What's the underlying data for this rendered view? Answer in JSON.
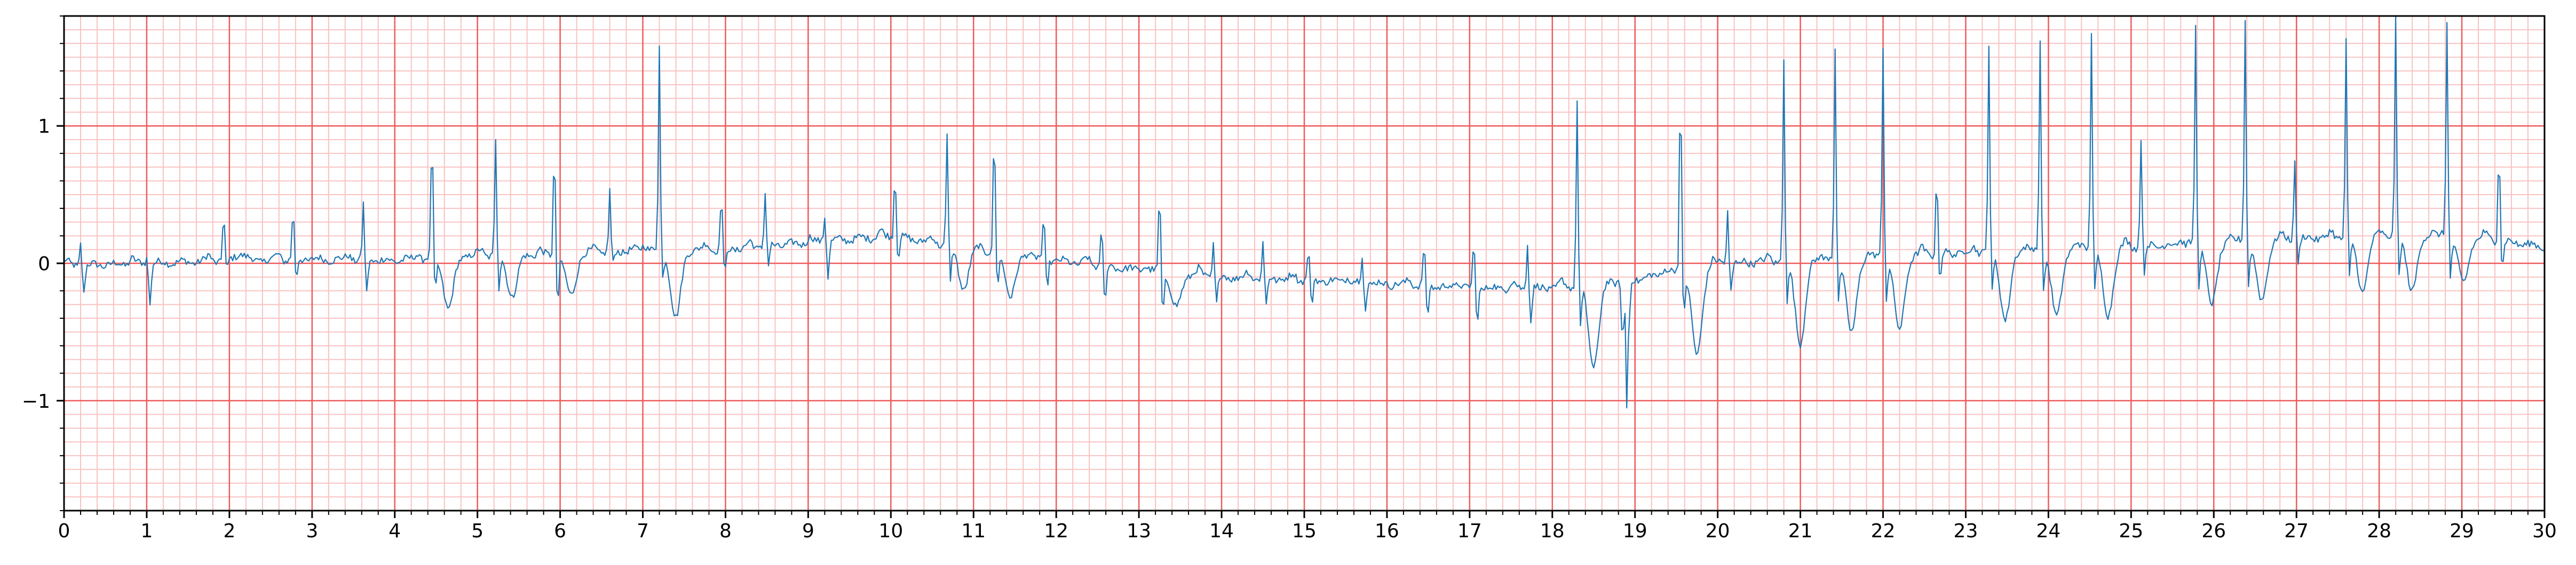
{
  "chart_data": {
    "type": "line",
    "title": "",
    "xlabel": "",
    "ylabel": "",
    "xlim": [
      0,
      30
    ],
    "ylim": [
      -1.8,
      1.8
    ],
    "x_ticks": [
      0,
      1,
      2,
      3,
      4,
      5,
      6,
      7,
      8,
      9,
      10,
      11,
      12,
      13,
      14,
      15,
      16,
      17,
      18,
      19,
      20,
      21,
      22,
      23,
      24,
      25,
      26,
      27,
      28,
      29,
      30
    ],
    "x_tick_labels": [
      "0",
      "1",
      "2",
      "3",
      "4",
      "5",
      "6",
      "7",
      "8",
      "9",
      "10",
      "11",
      "12",
      "13",
      "14",
      "15",
      "16",
      "17",
      "18",
      "19",
      "20",
      "21",
      "22",
      "23",
      "24",
      "25",
      "26",
      "27",
      "28",
      "29",
      "30"
    ],
    "y_ticks": [
      -1,
      0,
      1
    ],
    "y_tick_labels": [
      "−1",
      "0",
      "1"
    ],
    "grid": {
      "major": true,
      "major_x_step": 1,
      "major_y_step": 1,
      "major_color": "#f05a5a",
      "minor": true,
      "minor_x_step": 0.2,
      "minor_y_step": 0.1,
      "minor_color": "#f9c2c2"
    },
    "line_color": "#1f77b4",
    "sampling_hz": 50,
    "baseline_knots": [
      [
        0,
        -0.02
      ],
      [
        1,
        0.0
      ],
      [
        2,
        0.02
      ],
      [
        3,
        0.03
      ],
      [
        4,
        0.02
      ],
      [
        5,
        0.06
      ],
      [
        6,
        0.06
      ],
      [
        7,
        0.1
      ],
      [
        8,
        0.1
      ],
      [
        9,
        0.15
      ],
      [
        10,
        0.2
      ],
      [
        11,
        0.1
      ],
      [
        12,
        0.02
      ],
      [
        13,
        -0.05
      ],
      [
        14,
        -0.1
      ],
      [
        15,
        -0.12
      ],
      [
        16,
        -0.15
      ],
      [
        17,
        -0.18
      ],
      [
        18,
        -0.18
      ],
      [
        19,
        -0.12
      ],
      [
        20,
        0.0
      ],
      [
        21,
        0.02
      ],
      [
        22,
        0.05
      ],
      [
        23,
        0.08
      ],
      [
        24,
        0.1
      ],
      [
        25,
        0.12
      ],
      [
        26,
        0.15
      ],
      [
        27,
        0.18
      ],
      [
        28,
        0.2
      ],
      [
        29,
        0.2
      ],
      [
        30,
        0.12
      ]
    ],
    "beats": [
      {
        "t": 0.2,
        "r": 0.17,
        "s": -0.2,
        "tw": 0.0
      },
      {
        "t": 1.0,
        "r": 0.05,
        "s": -0.3,
        "tw": 0.0
      },
      {
        "t": 1.93,
        "r": 0.36,
        "s": -0.08,
        "tw": 0.05
      },
      {
        "t": 2.77,
        "r": 0.38,
        "s": -0.15,
        "tw": 0.0
      },
      {
        "t": 3.62,
        "r": 0.4,
        "s": -0.25,
        "tw": 0.0
      },
      {
        "t": 4.45,
        "r": 0.92,
        "s": -0.25,
        "tw": -0.38
      },
      {
        "t": 5.22,
        "r": 0.85,
        "s": -0.25,
        "tw": -0.3
      },
      {
        "t": 5.93,
        "r": 0.82,
        "s": -0.35,
        "tw": -0.3
      },
      {
        "t": 6.6,
        "r": 0.44,
        "s": -0.1,
        "tw": 0.0
      },
      {
        "t": 7.2,
        "r": 1.47,
        "s": -0.2,
        "tw": -0.5
      },
      {
        "t": 7.95,
        "r": 0.42,
        "s": -0.2,
        "tw": 0.0
      },
      {
        "t": 8.48,
        "r": 0.4,
        "s": -0.15,
        "tw": 0.0
      },
      {
        "t": 9.2,
        "r": 0.2,
        "s": -0.25,
        "tw": 0.0
      },
      {
        "t": 10.05,
        "r": 0.5,
        "s": -0.15,
        "tw": 0.0
      },
      {
        "t": 10.68,
        "r": 0.8,
        "s": -0.25,
        "tw": -0.3
      },
      {
        "t": 11.25,
        "r": 0.92,
        "s": -0.25,
        "tw": -0.3
      },
      {
        "t": 11.85,
        "r": 0.3,
        "s": -0.2,
        "tw": 0.0
      },
      {
        "t": 12.55,
        "r": 0.3,
        "s": -0.3,
        "tw": 0.0
      },
      {
        "t": 13.25,
        "r": 0.62,
        "s": -0.3,
        "tw": -0.25
      },
      {
        "t": 13.9,
        "r": 0.24,
        "s": -0.2,
        "tw": 0.0
      },
      {
        "t": 14.5,
        "r": 0.26,
        "s": -0.2,
        "tw": 0.0
      },
      {
        "t": 15.05,
        "r": 0.24,
        "s": -0.2,
        "tw": 0.0
      },
      {
        "t": 15.7,
        "r": 0.2,
        "s": -0.2,
        "tw": 0.0
      },
      {
        "t": 16.45,
        "r": 0.33,
        "s": -0.25,
        "tw": 0.0
      },
      {
        "t": 17.05,
        "r": 0.36,
        "s": -0.25,
        "tw": 0.0
      },
      {
        "t": 17.7,
        "r": 0.35,
        "s": -0.25,
        "tw": 0.0
      },
      {
        "t": 18.3,
        "r": 1.37,
        "s": -0.3,
        "tw": -0.6
      },
      {
        "t": 19.55,
        "r": 1.42,
        "s": -0.3,
        "tw": -0.65
      },
      {
        "t": 20.12,
        "r": 0.38,
        "s": -0.2,
        "tw": 0.0
      },
      {
        "t": 20.8,
        "r": 1.48,
        "s": -0.3,
        "tw": -0.6
      },
      {
        "t": 21.42,
        "r": 1.54,
        "s": -0.3,
        "tw": -0.55
      },
      {
        "t": 22.0,
        "r": 1.52,
        "s": -0.3,
        "tw": -0.55
      },
      {
        "t": 22.65,
        "r": 0.6,
        "s": -0.2,
        "tw": 0.0
      },
      {
        "t": 23.28,
        "r": 1.5,
        "s": -0.3,
        "tw": -0.5
      },
      {
        "t": 23.9,
        "r": 1.55,
        "s": -0.3,
        "tw": -0.5
      },
      {
        "t": 24.52,
        "r": 1.6,
        "s": -0.3,
        "tw": -0.5
      },
      {
        "t": 25.12,
        "r": 0.8,
        "s": -0.2,
        "tw": 0.0
      },
      {
        "t": 25.78,
        "r": 1.57,
        "s": -0.3,
        "tw": -0.45
      },
      {
        "t": 26.38,
        "r": 1.62,
        "s": -0.3,
        "tw": -0.45
      },
      {
        "t": 26.98,
        "r": 0.6,
        "s": -0.2,
        "tw": 0.0
      },
      {
        "t": 27.6,
        "r": 1.43,
        "s": -0.3,
        "tw": -0.4
      },
      {
        "t": 28.2,
        "r": 1.62,
        "s": -0.3,
        "tw": -0.4
      },
      {
        "t": 28.82,
        "r": 1.58,
        "s": -0.3,
        "tw": -0.35
      },
      {
        "t": 29.45,
        "r": 0.72,
        "s": -0.2,
        "tw": 0.0
      }
    ],
    "extra_deflections": [
      {
        "t": 18.9,
        "v": -0.92
      },
      {
        "t": 18.85,
        "v": -0.5
      },
      {
        "t": 18.93,
        "v": -0.3
      }
    ]
  }
}
